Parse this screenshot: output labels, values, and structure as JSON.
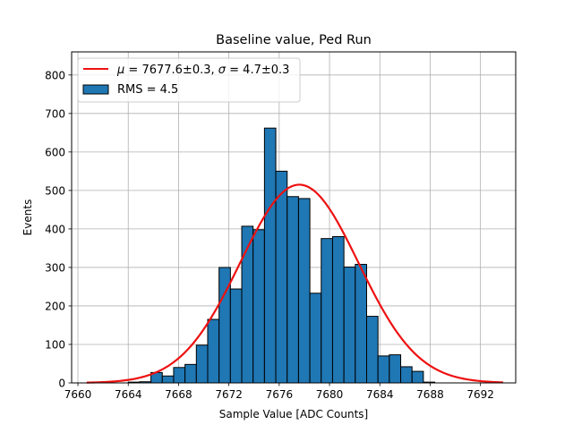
{
  "chart_data": {
    "type": "histogram",
    "title": "Baseline value, Ped Run",
    "xlabel": "Sample Value [ADC Counts]",
    "ylabel": "Events",
    "xlim": [
      7659.5,
      7694.8
    ],
    "ylim": [
      0,
      860
    ],
    "grid": true,
    "bar_color": "#1f77b4",
    "bar_edge_color": "#000000",
    "fit_color": "#ee1111",
    "xticks": [
      7660,
      7664,
      7668,
      7672,
      7676,
      7680,
      7684,
      7688,
      7692
    ],
    "yticks": [
      0,
      100,
      200,
      300,
      400,
      500,
      600,
      700,
      800
    ],
    "bins": {
      "edges_start": 7664,
      "bin_width": 0.9024,
      "counts": [
        2,
        3,
        27,
        18,
        40,
        48,
        98,
        165,
        300,
        244,
        407,
        398,
        662,
        550,
        484,
        479,
        233,
        375,
        380,
        301,
        308,
        173,
        70,
        73,
        42,
        30,
        2
      ]
    },
    "fit": {
      "type": "gaussian",
      "mu": 7677.6,
      "sigma": 4.7,
      "amplitude": 515,
      "x_range": [
        7660.7,
        7693.8
      ]
    },
    "legend": {
      "position": "upper-left",
      "entries": [
        {
          "kind": "line",
          "prefix_mu": "μ",
          "mu_text": " = 7677.6±0.3, ",
          "prefix_sigma": "σ",
          "sigma_text": " = 4.7±0.3"
        },
        {
          "kind": "patch",
          "label": "RMS = 4.5"
        }
      ]
    }
  }
}
